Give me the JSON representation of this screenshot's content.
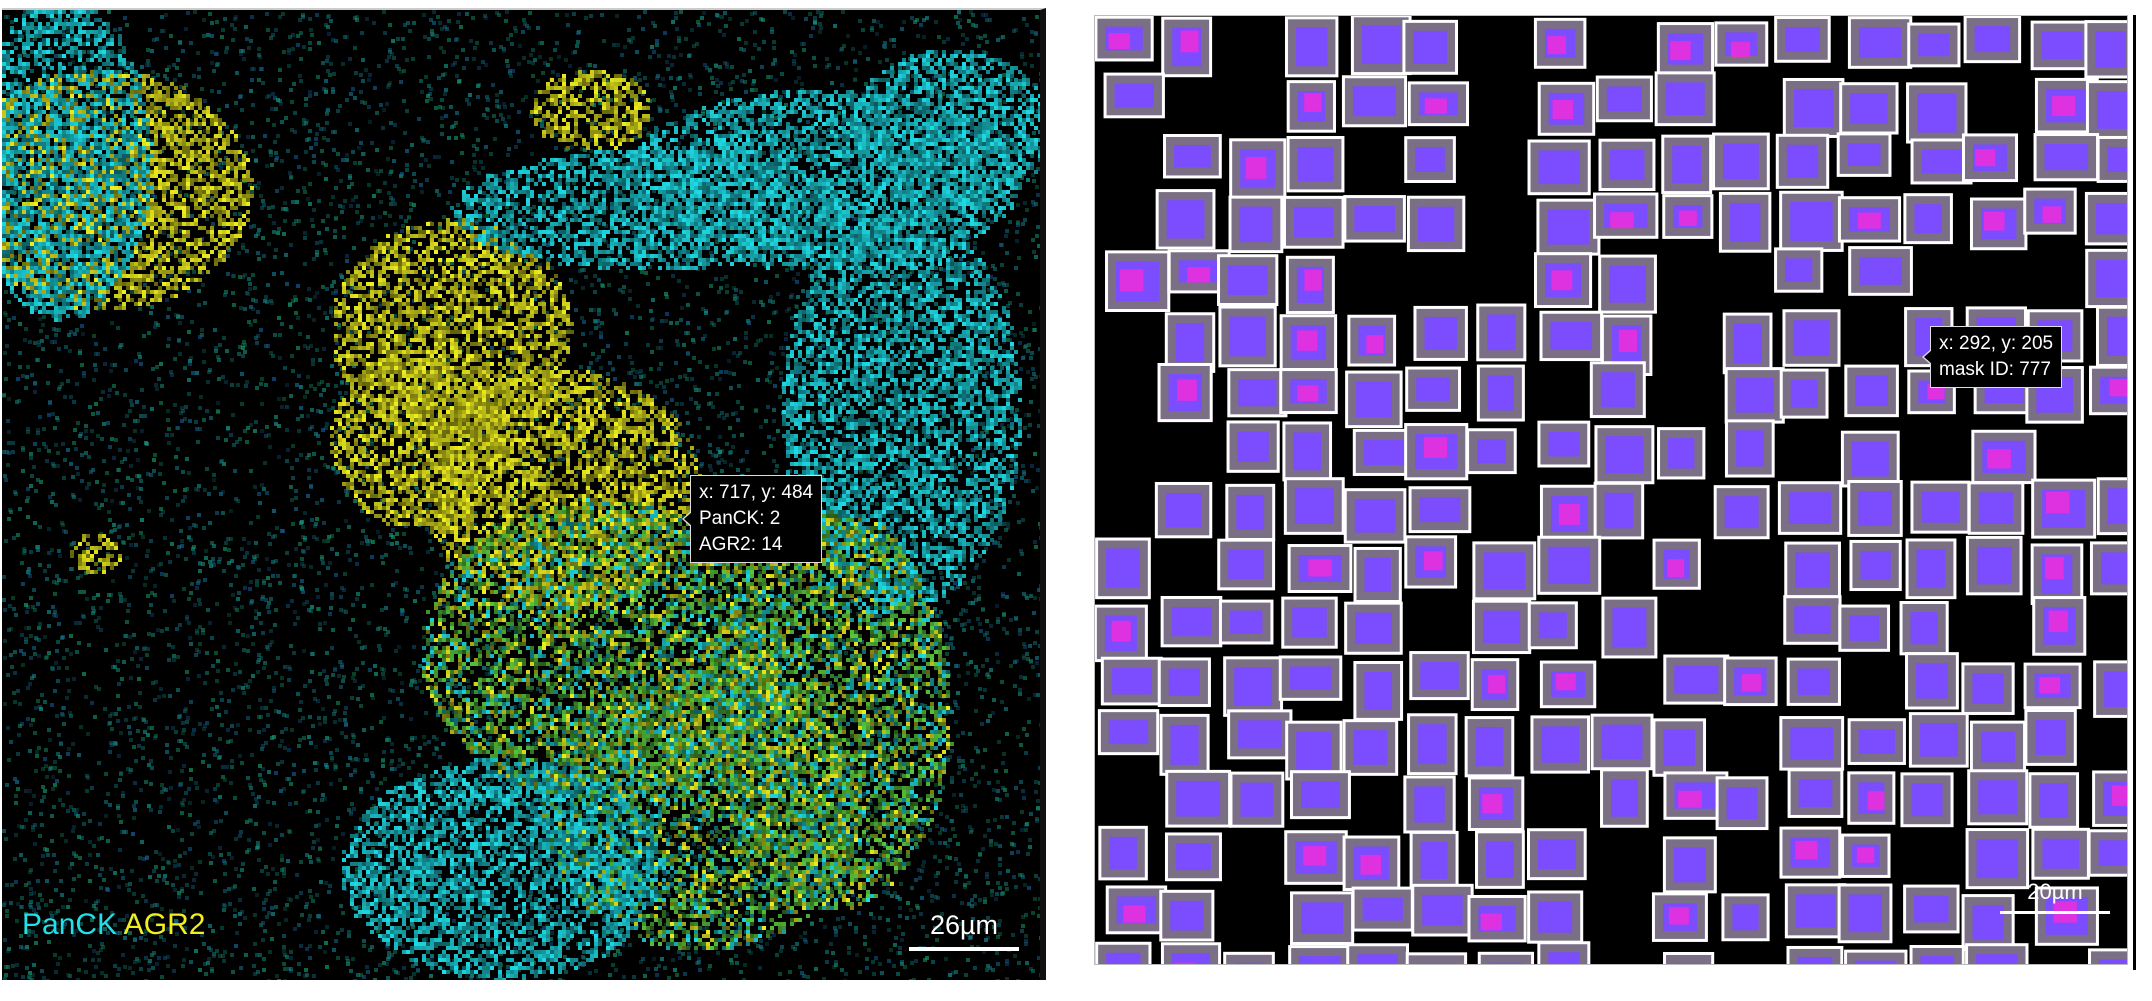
{
  "left_panel": {
    "channels": [
      {
        "name": "PanCK",
        "color": "#22e0e8"
      },
      {
        "name": "AGR2",
        "color": "#f0f020"
      }
    ],
    "tooltip": {
      "coords": "x: 717, y: 484",
      "line1": "PanCK: 2",
      "line2": "AGR2: 14"
    },
    "scale_bar": "26µm"
  },
  "right_panel": {
    "colors": {
      "cell_fill": "#7a6f84",
      "nucleus": "#7b4dff",
      "marker": "#ff2ad6",
      "outline": "#ffffff"
    },
    "tooltip": {
      "coords": "x: 292, y: 205",
      "line1": "mask ID: 777"
    },
    "scale_bar": "20µm"
  }
}
